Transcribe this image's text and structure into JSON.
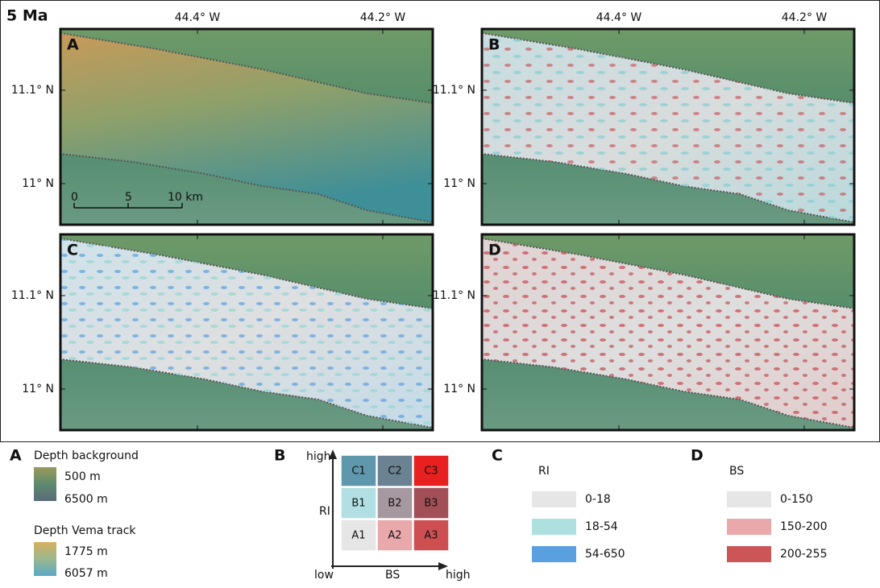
{
  "figure": {
    "title": "5 Ma",
    "lon_labels": [
      "44.4° W",
      "44.2° W"
    ],
    "lat_labels": [
      "11.1° N",
      "11° N"
    ],
    "panels": [
      "A",
      "B",
      "C",
      "D"
    ],
    "scale_bar": [
      "0",
      "5",
      "10 km"
    ],
    "legend": {
      "a": {
        "label": "A",
        "background_title": "Depth background",
        "background_range": [
          "500 m",
          "6500 m"
        ],
        "track_title": "Depth Vema track",
        "track_range": [
          "1775 m",
          "6057 m"
        ]
      },
      "b": {
        "label": "B",
        "y_high": "high",
        "y_axis": "RI",
        "x_low": "low",
        "x_axis": "BS",
        "x_high": "high",
        "cells": [
          [
            "C1",
            "C2",
            "C3"
          ],
          [
            "B1",
            "B2",
            "B3"
          ],
          [
            "A1",
            "A2",
            "A3"
          ]
        ]
      },
      "c": {
        "label": "C",
        "title": "RI",
        "classes": [
          "0-18",
          "18-54",
          "54-650"
        ]
      },
      "d": {
        "label": "D",
        "title": "BS",
        "classes": [
          "0-150",
          "150-200",
          "200-255"
        ]
      }
    }
  }
}
